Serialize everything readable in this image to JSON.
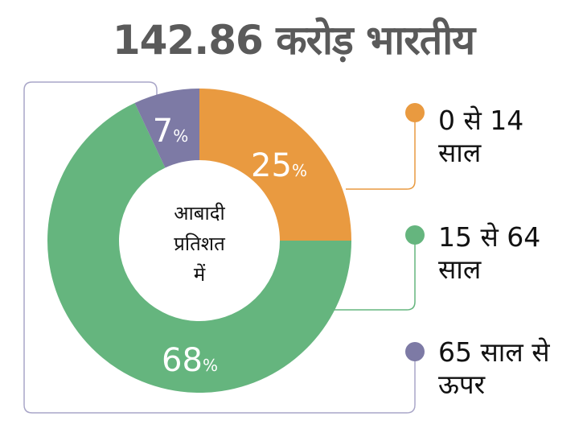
{
  "chart_data": {
    "type": "pie",
    "donut": true,
    "title": "142.86 करोड़ भारतीय",
    "center_label": [
      "आबादी",
      "प्रतिशत",
      "में"
    ],
    "slices": [
      {
        "label": "0 से 14 साल",
        "label_lines": [
          "0 से 14",
          "साल"
        ],
        "value": 25,
        "display": "25",
        "color": "#e99a40"
      },
      {
        "label": "15 से 64 साल",
        "label_lines": [
          "15 से 64",
          "साल"
        ],
        "value": 68,
        "display": "68",
        "color": "#65b57e"
      },
      {
        "label": "65 साल से ऊपर",
        "label_lines": [
          "65 साल से",
          "ऊपर"
        ],
        "value": 7,
        "display": "7",
        "color": "#7d7aa5"
      }
    ],
    "unit": "%"
  }
}
